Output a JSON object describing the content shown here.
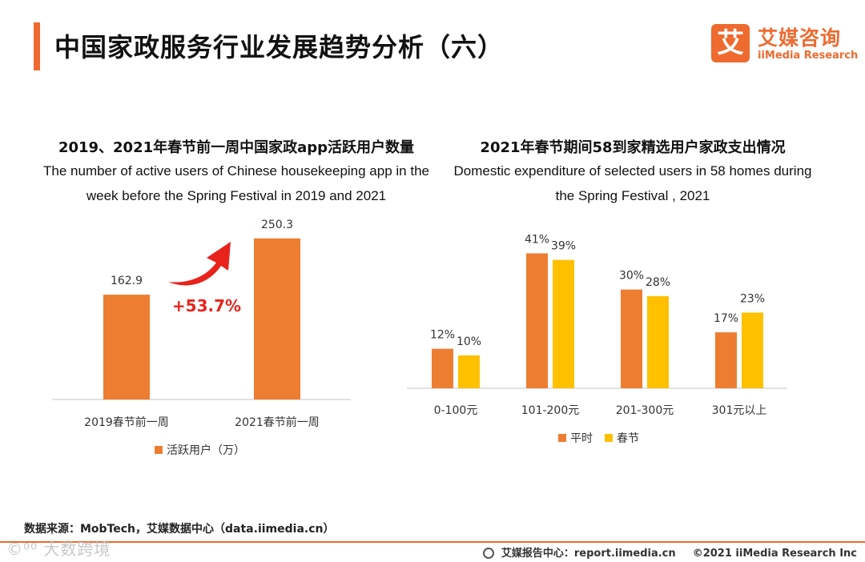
{
  "header": {
    "title": "中国家政服务行业发展趋势分析（六）",
    "logo_mark": "艾",
    "logo_cn": "艾媒咨询",
    "logo_en": "iiMedia Research"
  },
  "chart_data": [
    {
      "type": "bar",
      "title_cn": "2019、2021年春节前一周中国家政app活跃用户数量",
      "title_en": "The number of active users of Chinese housekeeping app in the week before the Spring Festival in 2019 and 2021",
      "categories": [
        "2019春节前一周",
        "2021春节前一周"
      ],
      "series": [
        {
          "name": "活跃用户（万）",
          "values": [
            162.9,
            250.3
          ],
          "labels": [
            "162.9",
            "250.3"
          ]
        }
      ],
      "annotation": "+53.7%",
      "ylim": [
        0,
        260
      ],
      "grid": false,
      "legend": "bottom"
    },
    {
      "type": "bar",
      "title_cn": "2021年春节期间58到家精选用户家政支出情况",
      "title_en": "Domestic expenditure of selected users in 58 homes during the Spring Festival , 2021",
      "categories": [
        "0-100元",
        "101-200元",
        "201-300元",
        "301元以上"
      ],
      "series": [
        {
          "name": "平时",
          "values": [
            12,
            41,
            30,
            17
          ],
          "labels": [
            "12%",
            "41%",
            "30%",
            "17%"
          ]
        },
        {
          "name": "春节",
          "values": [
            10,
            39,
            28,
            23
          ],
          "labels": [
            "10%",
            "39%",
            "28%",
            "23%"
          ]
        }
      ],
      "ylim": [
        0,
        45
      ],
      "grid": false,
      "legend": "bottom"
    }
  ],
  "colors": {
    "accent": "#ee6a2f",
    "series_orange": "#ed7d31",
    "series_yellow": "#ffc000",
    "annotation_red": "#e8231b"
  },
  "footer": {
    "source": "数据来源：MobTech，艾媒数据中心（data.iimedia.cn）",
    "watermark": "©⁰⁰ 大数跨境",
    "report": "艾媒报告中心：report.iimedia.cn",
    "copyright": "©2021  iiMedia Research  Inc"
  }
}
